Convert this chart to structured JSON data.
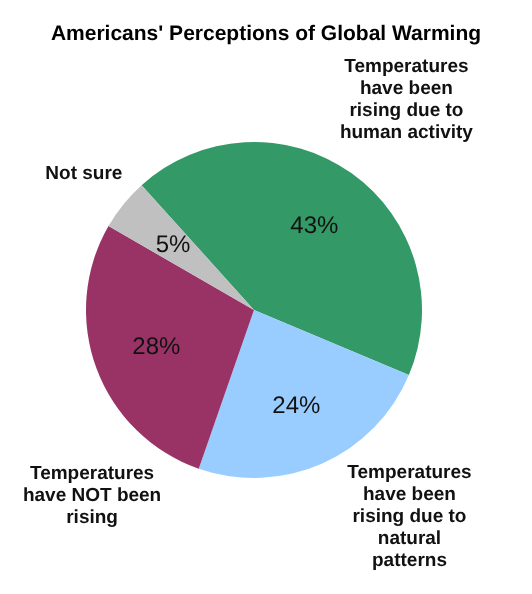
{
  "chart_data": {
    "type": "pie",
    "title": "Americans' Perceptions of Global Warming",
    "categories": [
      "Temperatures have been rising due to human activity",
      "Temperatures have been rising due to natural patterns",
      "Temperatures have NOT been rising",
      "Not sure"
    ],
    "values": [
      43,
      24,
      28,
      5
    ],
    "colors": [
      "#339966",
      "#99ccff",
      "#993366",
      "#c0c0c0"
    ],
    "value_labels": [
      "43%",
      "24%",
      "28%",
      "5%"
    ],
    "legend": false
  }
}
